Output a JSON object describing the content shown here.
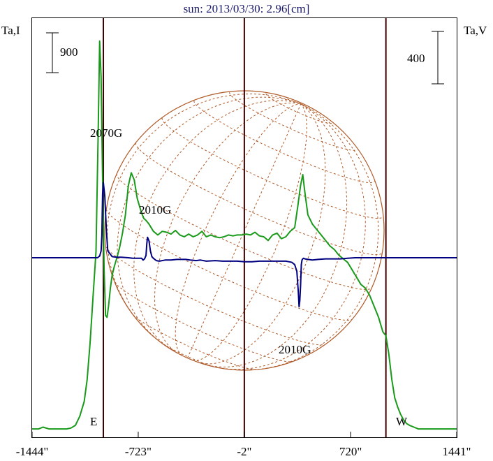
{
  "title": "sun: 2013/03/30: 2.96[cm]",
  "left_axis_label": "Ta,I",
  "right_axis_label": "Ta,V",
  "scale_left": "900",
  "scale_right": "400",
  "limb_labels": {
    "east": "E",
    "west": "W"
  },
  "annotations": [
    {
      "text": "2070G",
      "x": -985,
      "series": "I"
    },
    {
      "text": "2010G",
      "x": -655,
      "series": "V"
    },
    {
      "text": "2010G",
      "x": 380,
      "series": "V"
    }
  ],
  "colors": {
    "I": "#1a9a1a",
    "V": "#000080",
    "grid": "#b05a28",
    "limb": "#400000",
    "title": "#1a1a6a"
  },
  "chart_data": {
    "type": "line",
    "title": "sun: 2013/03/30: 2.96[cm]",
    "xlabel": "",
    "ylabel": "Ta,I",
    "y2label": "Ta,V",
    "x_ticks": [
      -1444,
      -723,
      -2,
      720,
      1441
    ],
    "x_tick_labels": [
      "-1444\"",
      "-723\"",
      "-2\"",
      "720\"",
      "1441\""
    ],
    "xlim": [
      -1444,
      1441
    ],
    "vertical_lines": [
      -960,
      -2,
      960
    ],
    "series": [
      {
        "name": "Ta,I",
        "color": "#1a9a1a",
        "x": [
          -1444,
          -1400,
          -1370,
          -1330,
          -1290,
          -1250,
          -1210,
          -1180,
          -1150,
          -1120,
          -1090,
          -1070,
          -1050,
          -1030,
          -1010,
          -995,
          -985,
          -975,
          -965,
          -955,
          -945,
          -935,
          -925,
          -912,
          -900,
          -885,
          -870,
          -850,
          -830,
          -810,
          -790,
          -770,
          -750,
          -730,
          -715,
          -700,
          -685,
          -670,
          -650,
          -620,
          -590,
          -560,
          -530,
          -500,
          -470,
          -440,
          -410,
          -380,
          -350,
          -320,
          -290,
          -260,
          -230,
          -200,
          -170,
          -140,
          -110,
          -80,
          -50,
          -20,
          10,
          40,
          70,
          100,
          130,
          160,
          190,
          220,
          250,
          280,
          310,
          340,
          360,
          380,
          395,
          410,
          430,
          460,
          490,
          520,
          550,
          580,
          610,
          640,
          670,
          700,
          730,
          760,
          790,
          820,
          850,
          880,
          910,
          940,
          960,
          980,
          1000,
          1020,
          1040,
          1060,
          1080,
          1100,
          1120,
          1150,
          1180,
          1210,
          1240,
          1280,
          1330,
          1380,
          1441
        ],
        "y": [
          30,
          30,
          40,
          30,
          30,
          30,
          30,
          35,
          50,
          100,
          180,
          300,
          500,
          750,
          1000,
          1650,
          2150,
          1950,
          1400,
          900,
          650,
          640,
          700,
          800,
          870,
          920,
          960,
          1020,
          1100,
          1200,
          1360,
          1430,
          1390,
          1290,
          1250,
          1210,
          1180,
          1170,
          1150,
          1110,
          1090,
          1110,
          1105,
          1095,
          1115,
          1090,
          1080,
          1095,
          1080,
          1090,
          1110,
          1080,
          1090,
          1080,
          1075,
          1080,
          1090,
          1085,
          1090,
          1090,
          1095,
          1090,
          1105,
          1085,
          1080,
          1060,
          1090,
          1100,
          1070,
          1080,
          1110,
          1130,
          1240,
          1360,
          1420,
          1320,
          1200,
          1150,
          1120,
          1090,
          1060,
          1030,
          1010,
          980,
          960,
          940,
          900,
          860,
          820,
          800,
          760,
          700,
          640,
          560,
          540,
          440,
          300,
          200,
          150,
          110,
          80,
          60,
          50,
          40,
          30,
          30,
          30,
          30,
          30,
          30,
          30
        ]
      },
      {
        "name": "Ta,V",
        "color": "#000080",
        "x": [
          -1444,
          -1000,
          -985,
          -975,
          -970,
          -965,
          -960,
          -950,
          -940,
          -930,
          -900,
          -870,
          -840,
          -790,
          -760,
          -720,
          -700,
          -690,
          -680,
          -670,
          -665,
          -660,
          -650,
          -640,
          -630,
          -620,
          -600,
          -580,
          -540,
          -500,
          -460,
          -430,
          -400,
          -370,
          -330,
          -300,
          -260,
          -200,
          -150,
          -100,
          -50,
          0,
          50,
          100,
          150,
          200,
          250,
          280,
          300,
          320,
          340,
          355,
          365,
          370,
          375,
          380,
          385,
          390,
          395,
          400,
          410,
          430,
          460,
          500,
          550,
          600,
          650,
          700,
          750,
          800,
          850,
          900,
          960,
          1000,
          1050,
          1100,
          1441
        ],
        "y": [
          0,
          0,
          15,
          60,
          200,
          560,
          660,
          540,
          260,
          60,
          10,
          5,
          5,
          0,
          -5,
          -5,
          -5,
          -20,
          -10,
          20,
          120,
          180,
          150,
          60,
          10,
          -5,
          -25,
          -30,
          -20,
          -20,
          -15,
          -15,
          -15,
          -20,
          -25,
          -20,
          -30,
          -25,
          -30,
          -30,
          -30,
          -35,
          -35,
          -30,
          -30,
          -30,
          -30,
          -30,
          -35,
          -40,
          -60,
          -120,
          -300,
          -430,
          -380,
          -250,
          -60,
          -20,
          -10,
          -5,
          -10,
          -15,
          -20,
          -15,
          -10,
          -10,
          -10,
          -5,
          0,
          0,
          0,
          0,
          0,
          0,
          0,
          0,
          0
        ]
      }
    ]
  }
}
